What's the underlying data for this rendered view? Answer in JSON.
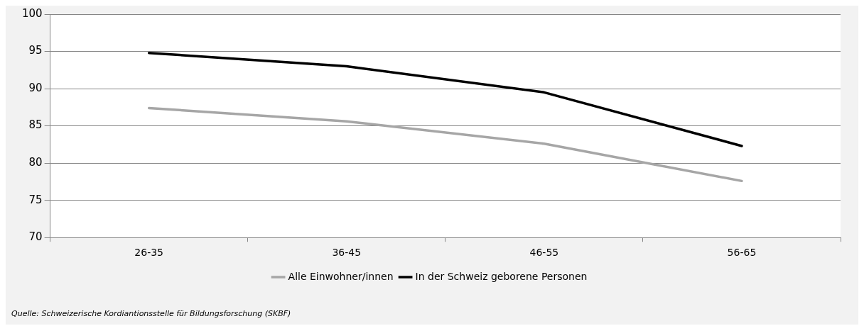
{
  "chart_data": {
    "type": "line",
    "categories": [
      "26-35",
      "36-45",
      "46-55",
      "56-65"
    ],
    "series": [
      {
        "name": "Alle Einwohner/innen",
        "color": "#a6a6a6",
        "values": [
          87.4,
          85.6,
          82.6,
          77.6
        ]
      },
      {
        "name": "In der Schweiz geborene Personen",
        "color": "#000000",
        "values": [
          94.8,
          93.0,
          89.5,
          82.3
        ]
      }
    ],
    "ylim": [
      70,
      100
    ],
    "yticks": [
      70,
      75,
      80,
      85,
      90,
      95,
      100
    ],
    "grid": "y",
    "legend": "bottom",
    "marker": "none",
    "line_style": "solid",
    "annotations": [
      "Quelle:  Schweizerische Kordiantionsstelle für Bildungsforschung (SKBF)"
    ]
  }
}
